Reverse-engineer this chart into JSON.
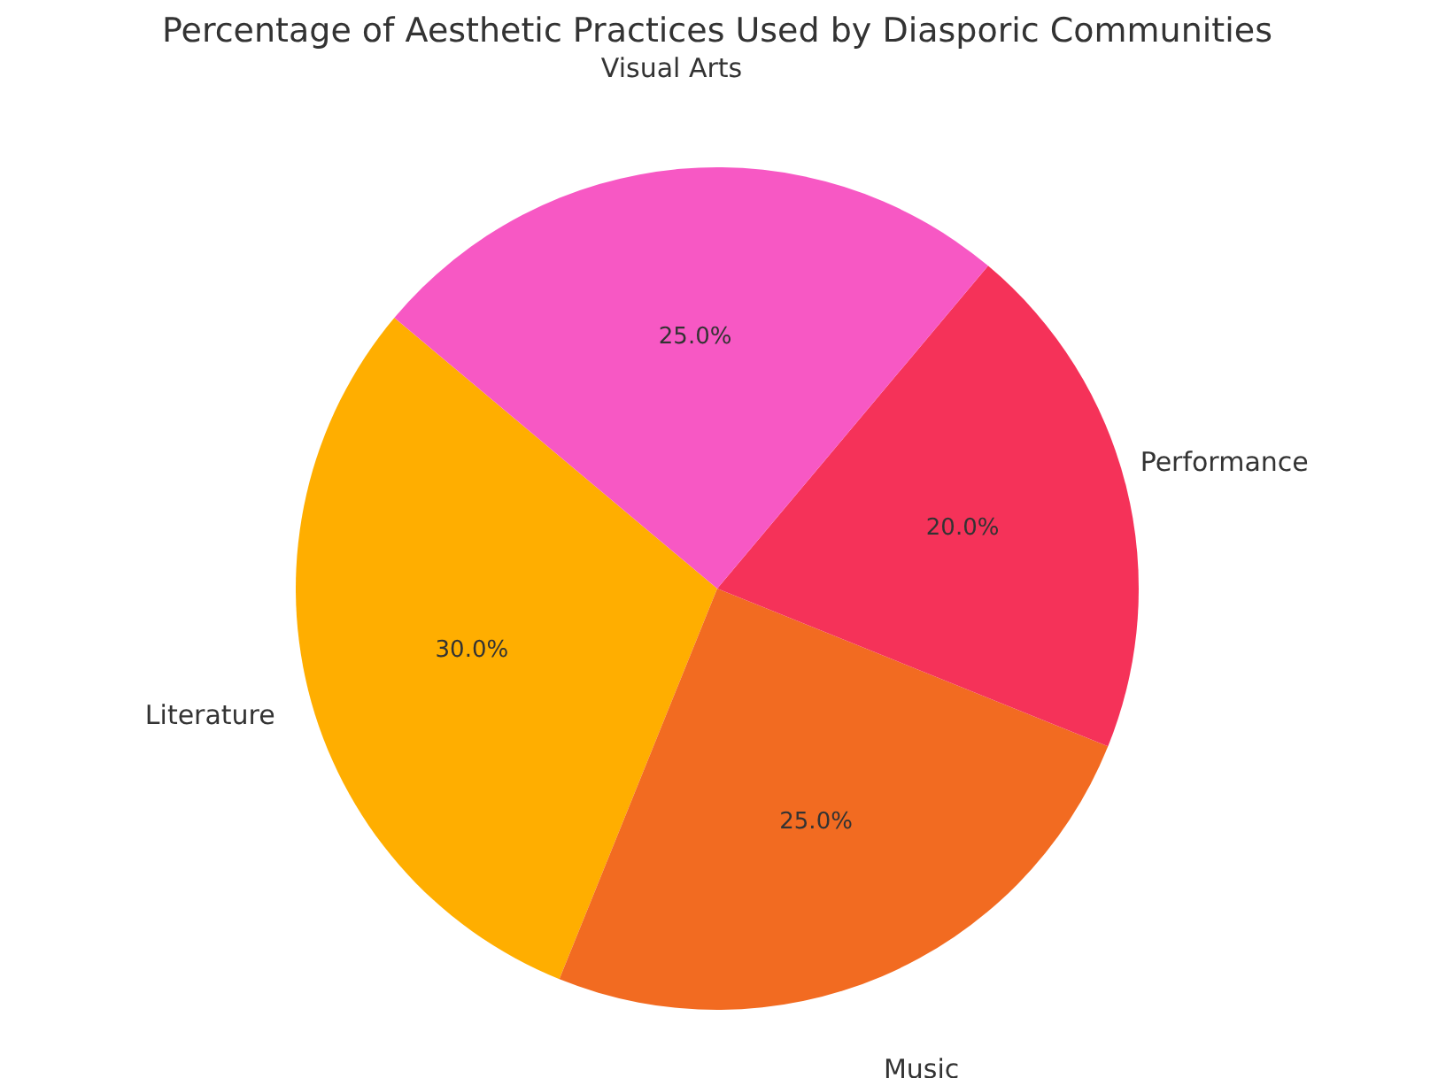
{
  "chart_data": {
    "type": "pie",
    "title": "Percentage of Aesthetic Practices Used by Diasporic Communities",
    "categories": [
      "Literature",
      "Music",
      "Performance",
      "Visual Arts"
    ],
    "values": [
      30,
      25,
      20,
      25
    ],
    "colors": [
      "#ffae00",
      "#f26b21",
      "#f53259",
      "#f758c4"
    ],
    "value_labels": [
      "30.0%",
      "25.0%",
      "20.0%",
      "25.0%"
    ],
    "legend": false
  }
}
